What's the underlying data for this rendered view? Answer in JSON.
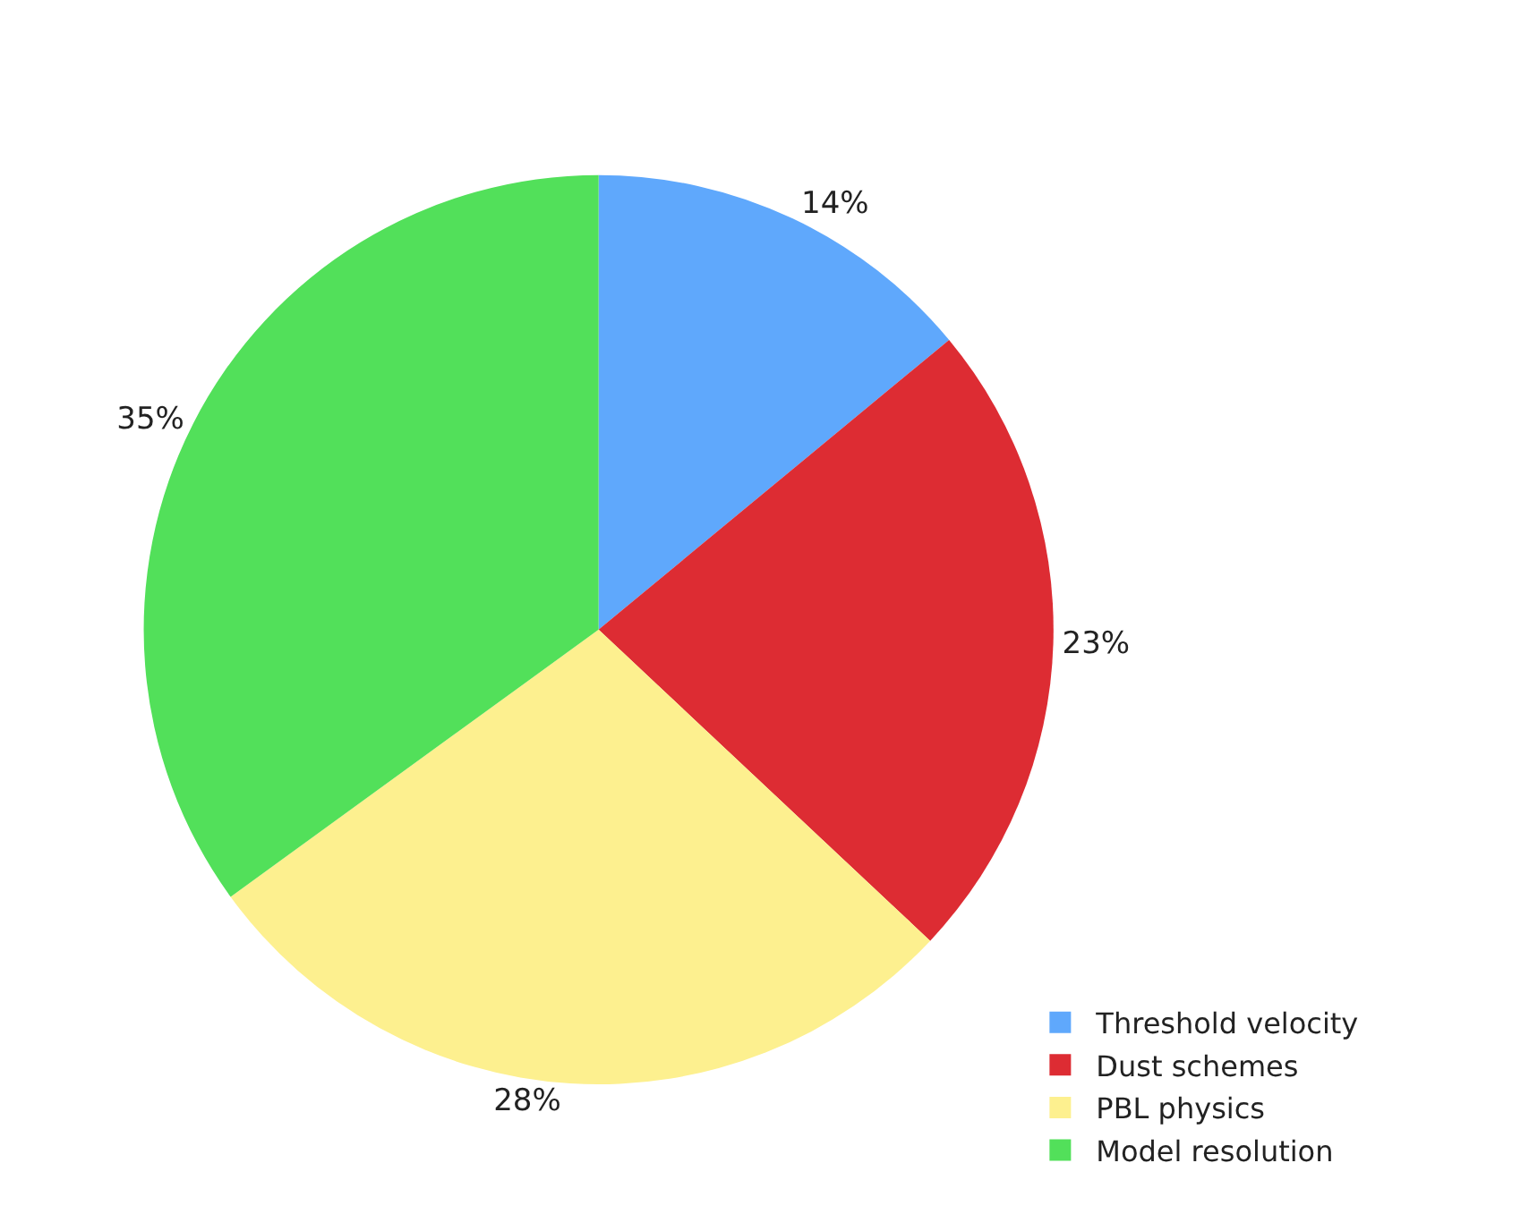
{
  "chart_data": {
    "type": "pie",
    "categories": [
      "Threshold velocity",
      "Dust schemes",
      "PBL physics",
      "Model resolution"
    ],
    "values": [
      14,
      23,
      28,
      35
    ],
    "value_labels": [
      "14%",
      "23%",
      "28%",
      "35%"
    ],
    "colors": [
      "#5fa8fc",
      "#dd2c33",
      "#fdf08f",
      "#52e05a"
    ],
    "legend": "bottom right"
  }
}
